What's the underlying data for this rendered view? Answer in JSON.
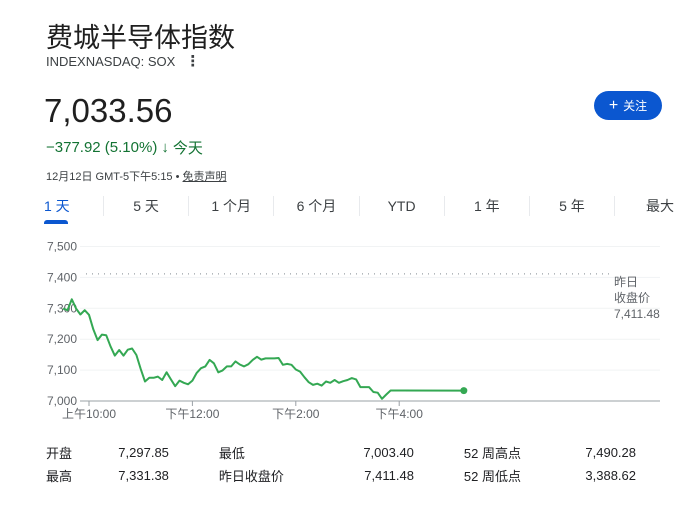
{
  "header": {
    "title": "费城半导体指数",
    "ticker": "INDEXNASDAQ: SOX",
    "more_icon": "vertical-dots-icon"
  },
  "quote": {
    "price": "7,033.56",
    "change": "−377.92 (5.10%)",
    "direction_icon": "arrow-down-icon",
    "period": "今天",
    "timestamp": "12月12日 GMT-5下午5:15 •",
    "disclaimer": "免责声明"
  },
  "follow": {
    "icon": "plus-icon",
    "label": "关注"
  },
  "tabs": [
    {
      "label": "1 天",
      "active": true
    },
    {
      "label": "5 天"
    },
    {
      "label": "1 个月"
    },
    {
      "label": "6 个月"
    },
    {
      "label": "YTD"
    },
    {
      "label": "1 年"
    },
    {
      "label": "5 年"
    },
    {
      "label": "最大"
    }
  ],
  "colors": {
    "accent": "#0b57d0",
    "down": "#137333",
    "line": "#34a853"
  },
  "chart_data": {
    "type": "line",
    "yticks": [
      "7,500",
      "7,400",
      "7,300",
      "7,200",
      "7,100",
      "7,000"
    ],
    "ylim": [
      7000,
      7500
    ],
    "xticks": [
      {
        "label": "上午10:00",
        "t": "10:00"
      },
      {
        "label": "下午12:00",
        "t": "12:00"
      },
      {
        "label": "下午2:00",
        "t": "14:00"
      },
      {
        "label": "下午4:00",
        "t": "16:00"
      }
    ],
    "grid": true,
    "previous_close": {
      "label_line1": "昨日",
      "label_line2": "收盘价",
      "value_text": "7,411.48",
      "value": 7411.48
    },
    "x": [
      "09:30",
      "09:35",
      "09:40",
      "09:45",
      "09:50",
      "09:55",
      "10:00",
      "10:05",
      "10:10",
      "10:15",
      "10:20",
      "10:25",
      "10:30",
      "10:35",
      "10:40",
      "10:45",
      "10:50",
      "10:55",
      "11:00",
      "11:05",
      "11:10",
      "11:15",
      "11:20",
      "11:25",
      "11:30",
      "11:35",
      "11:40",
      "11:45",
      "11:50",
      "11:55",
      "12:00",
      "12:05",
      "12:10",
      "12:15",
      "12:20",
      "12:25",
      "12:30",
      "12:35",
      "12:40",
      "12:45",
      "12:50",
      "12:55",
      "13:00",
      "13:05",
      "13:10",
      "13:15",
      "13:20",
      "13:25",
      "13:30",
      "13:35",
      "13:40",
      "13:45",
      "13:50",
      "13:55",
      "14:00",
      "14:05",
      "14:10",
      "14:15",
      "14:20",
      "14:25",
      "14:30",
      "14:35",
      "14:40",
      "14:45",
      "14:50",
      "14:55",
      "15:00",
      "15:05",
      "15:10",
      "15:15",
      "15:20",
      "15:25",
      "15:30",
      "15:35",
      "15:40",
      "15:45",
      "15:50",
      "16:00",
      "17:15"
    ],
    "y": [
      7299,
      7294,
      7329,
      7299,
      7280,
      7294,
      7279,
      7232,
      7197,
      7215,
      7213,
      7177,
      7147,
      7165,
      7147,
      7166,
      7170,
      7149,
      7104,
      7063,
      7075,
      7075,
      7079,
      7068,
      7093,
      7070,
      7048,
      7066,
      7059,
      7054,
      7066,
      7091,
      7106,
      7112,
      7133,
      7122,
      7093,
      7099,
      7112,
      7112,
      7128,
      7118,
      7112,
      7119,
      7133,
      7143,
      7134,
      7138,
      7138,
      7138,
      7139,
      7117,
      7120,
      7117,
      7102,
      7095,
      7077,
      7061,
      7052,
      7056,
      7050,
      7063,
      7059,
      7068,
      7059,
      7064,
      7068,
      7074,
      7070,
      7045,
      7045,
      7045,
      7029,
      7027,
      7007,
      7021,
      7034,
      7034,
      7033.56
    ]
  },
  "stats": [
    [
      {
        "label": "开盘",
        "value": "7,297.85"
      },
      {
        "label": "最低",
        "value": "7,003.40"
      },
      {
        "label": "52 周高点",
        "value": "7,490.28"
      }
    ],
    [
      {
        "label": "最高",
        "value": "7,331.38"
      },
      {
        "label": "昨日收盘价",
        "value": "7,411.48"
      },
      {
        "label": "52 周低点",
        "value": "3,388.62"
      }
    ]
  ]
}
